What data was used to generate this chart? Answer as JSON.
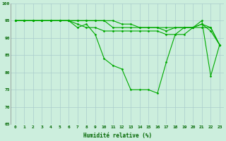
{
  "xlabel": "Humidité relative (%)",
  "bg_color": "#cceedd",
  "grid_color": "#aacccc",
  "line_color": "#00aa00",
  "ylim": [
    65,
    100
  ],
  "xlim": [
    -0.5,
    23.5
  ],
  "yticks": [
    65,
    70,
    75,
    80,
    85,
    90,
    95,
    100
  ],
  "xticks": [
    0,
    1,
    2,
    3,
    4,
    5,
    6,
    7,
    8,
    9,
    10,
    11,
    12,
    13,
    14,
    15,
    16,
    17,
    18,
    19,
    20,
    21,
    22,
    23
  ],
  "lines": [
    [
      95,
      95,
      95,
      95,
      95,
      95,
      95,
      93,
      94,
      91,
      84,
      82,
      81,
      75,
      75,
      75,
      74,
      83,
      91,
      91,
      93,
      95,
      79,
      88
    ],
    [
      95,
      95,
      95,
      95,
      95,
      95,
      95,
      94,
      93,
      93,
      92,
      92,
      92,
      92,
      92,
      92,
      92,
      91,
      91,
      93,
      93,
      94,
      92,
      88
    ],
    [
      95,
      95,
      95,
      95,
      95,
      95,
      95,
      95,
      95,
      95,
      95,
      93,
      93,
      93,
      93,
      93,
      93,
      92,
      93,
      93,
      93,
      93,
      93,
      88
    ],
    [
      95,
      95,
      95,
      95,
      95,
      95,
      95,
      95,
      95,
      95,
      95,
      95,
      94,
      94,
      93,
      93,
      93,
      93,
      93,
      93,
      93,
      94,
      93,
      88
    ]
  ],
  "xlabel_fontsize": 5.5,
  "ylabel_fontsize": 5.5,
  "tick_fontsize": 4.5,
  "linewidth": 0.8,
  "markersize": 1.5
}
